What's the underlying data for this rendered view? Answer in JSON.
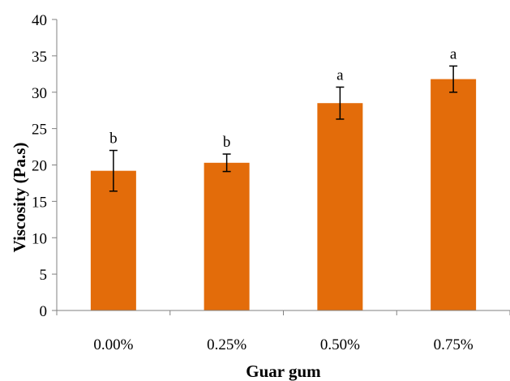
{
  "chart_data": {
    "type": "bar",
    "title": "",
    "xlabel": "Guar gum",
    "ylabel": "Viscosity (Pa.s)",
    "categories": [
      "0.00%",
      "0.25%",
      "0.50%",
      "0.75%"
    ],
    "series": [
      {
        "values": [
          19.2,
          20.3,
          28.5,
          31.8
        ],
        "errors": [
          2.8,
          1.2,
          2.2,
          1.8
        ],
        "significance": [
          "b",
          "b",
          "a",
          "a"
        ],
        "color": "#E36C0A"
      }
    ],
    "ylim": [
      0,
      40
    ],
    "yticks": [
      "0",
      "5",
      "10",
      "15",
      "20",
      "25",
      "30",
      "35",
      "40"
    ],
    "grid": false,
    "legend": "none"
  }
}
